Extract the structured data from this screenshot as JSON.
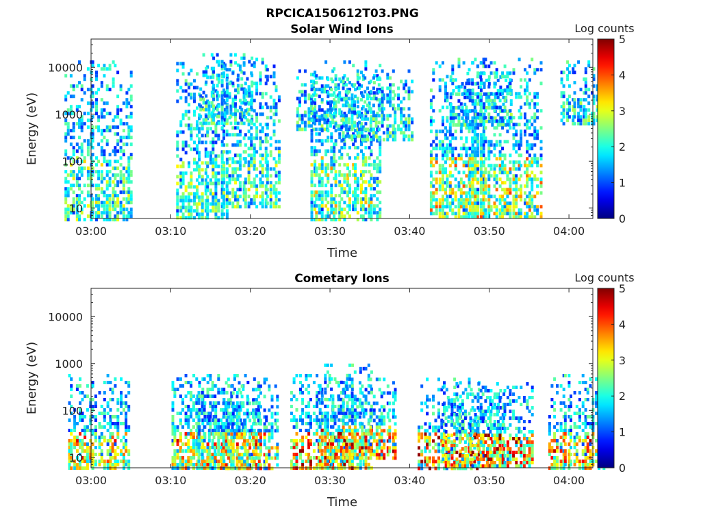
{
  "figure": {
    "filename": "RPCICA150612T03.PNG"
  },
  "chart_data": [
    {
      "type": "heatmap",
      "title": "Solar Wind Ions",
      "xlabel": "Time",
      "ylabel": "Energy (eV)",
      "yscale": "log",
      "xlim": [
        "03:00",
        "04:03"
      ],
      "ylim": [
        6,
        40000
      ],
      "x_tick_labels": [
        "03:00",
        "03:10",
        "03:20",
        "03:30",
        "03:40",
        "03:50",
        "04:00"
      ],
      "y_tick_labels": [
        "10",
        "100",
        "1000",
        "10000"
      ],
      "y_tick_values": [
        10,
        100,
        1000,
        10000
      ],
      "colorbar": {
        "label": "Log counts",
        "range": [
          0,
          5
        ],
        "ticks": [
          "0",
          "1",
          "2",
          "3",
          "4",
          "5"
        ]
      },
      "colormap": "jet",
      "bursts": [
        {
          "t": "03:01",
          "emin": 6,
          "emax": 14000,
          "core": 1.0
        },
        {
          "t": "03:14",
          "emin": 6,
          "emax": 13000,
          "core": 1.0
        },
        {
          "t": "03:17",
          "emin": 600,
          "emax": 20000,
          "core": 0.6
        },
        {
          "t": "03:20",
          "emin": 10,
          "emax": 16000,
          "core": 1.0
        },
        {
          "t": "03:29",
          "emin": 500,
          "emax": 9000,
          "core": 0.6
        },
        {
          "t": "03:32",
          "emin": 6,
          "emax": 14000,
          "core": 1.5
        },
        {
          "t": "03:36",
          "emin": 300,
          "emax": 9000,
          "core": 0.6
        },
        {
          "t": "03:46",
          "emin": 6,
          "emax": 16000,
          "core": 2.0
        },
        {
          "t": "03:49",
          "emin": 600,
          "emax": 8000,
          "core": 0.6
        },
        {
          "t": "03:52",
          "emin": 6,
          "emax": 16000,
          "core": 2.0
        },
        {
          "t": "04:02",
          "emin": 600,
          "emax": 14000,
          "core": 0.6
        }
      ]
    },
    {
      "type": "heatmap",
      "title": "Cometary Ions",
      "xlabel": "Time",
      "ylabel": "Energy (eV)",
      "yscale": "log",
      "xlim": [
        "03:00",
        "04:03"
      ],
      "ylim": [
        6,
        40000
      ],
      "x_tick_labels": [
        "03:00",
        "03:10",
        "03:20",
        "03:30",
        "03:40",
        "03:50",
        "04:00"
      ],
      "y_tick_labels": [
        "10",
        "100",
        "1000",
        "10000"
      ],
      "y_tick_values": [
        10,
        100,
        1000,
        10000
      ],
      "colorbar": {
        "label": "Log counts",
        "range": [
          0,
          5
        ],
        "ticks": [
          "0",
          "1",
          "2",
          "3",
          "4",
          "5"
        ]
      },
      "colormap": "jet",
      "bursts": [
        {
          "t": "03:01",
          "emin": 6,
          "emax": 600,
          "core": 2.5
        },
        {
          "t": "03:14",
          "emin": 6,
          "emax": 600,
          "core": 2.5
        },
        {
          "t": "03:17",
          "emin": 6,
          "emax": 600,
          "core": 2.5
        },
        {
          "t": "03:20",
          "emin": 6,
          "emax": 500,
          "core": 2.5
        },
        {
          "t": "03:29",
          "emin": 6,
          "emax": 600,
          "core": 3.7
        },
        {
          "t": "03:32",
          "emin": 6,
          "emax": 1000,
          "core": 3.0
        },
        {
          "t": "03:35",
          "emin": 10,
          "emax": 500,
          "core": 3.0
        },
        {
          "t": "03:45",
          "emin": 6,
          "emax": 500,
          "core": 3.8
        },
        {
          "t": "03:48",
          "emin": 6,
          "emax": 400,
          "core": 3.0
        },
        {
          "t": "03:52",
          "emin": 6,
          "emax": 400,
          "core": 3.5
        },
        {
          "t": "04:01",
          "emin": 6,
          "emax": 600,
          "core": 3.0
        }
      ]
    }
  ]
}
